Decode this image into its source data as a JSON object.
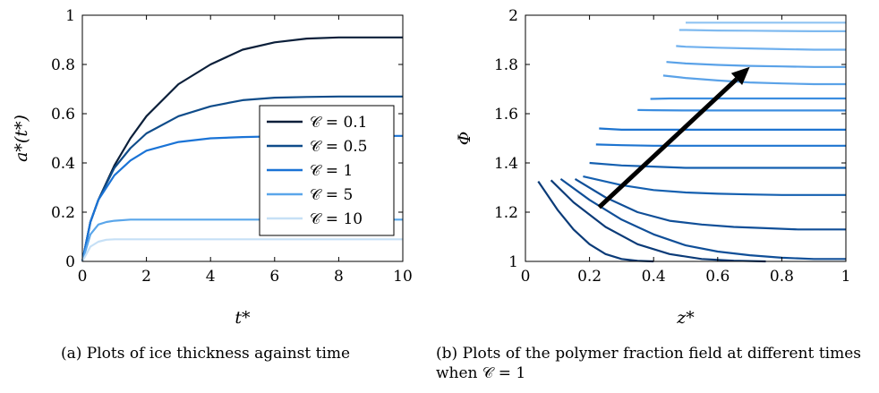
{
  "chart_data": [
    {
      "type": "line",
      "title": "",
      "xlabel": "t*",
      "ylabel": "a*(t*)",
      "xlim": [
        0,
        10
      ],
      "ylim": [
        0,
        1
      ],
      "xticks": [
        0,
        2,
        4,
        6,
        8,
        10
      ],
      "yticks": [
        0,
        0.2,
        0.4,
        0.6,
        0.8,
        1
      ],
      "legend_position": "center-right",
      "grid": false,
      "series": [
        {
          "name": "𝒞 = 0.1",
          "color": "#0b1f3a",
          "x": [
            0,
            0.25,
            0.5,
            1,
            1.5,
            2,
            3,
            4,
            5,
            6,
            7,
            8,
            9,
            10
          ],
          "y": [
            0,
            0.16,
            0.25,
            0.39,
            0.5,
            0.59,
            0.72,
            0.8,
            0.86,
            0.89,
            0.905,
            0.91,
            0.91,
            0.91
          ]
        },
        {
          "name": "𝒞 = 0.5",
          "color": "#0f4c8a",
          "x": [
            0,
            0.25,
            0.5,
            1,
            1.5,
            2,
            3,
            4,
            5,
            6,
            7,
            8,
            9,
            10
          ],
          "y": [
            0,
            0.16,
            0.25,
            0.38,
            0.46,
            0.52,
            0.59,
            0.63,
            0.655,
            0.665,
            0.668,
            0.67,
            0.67,
            0.67
          ]
        },
        {
          "name": "𝒞 = 1",
          "color": "#1a73d6",
          "x": [
            0,
            0.25,
            0.5,
            1,
            1.5,
            2,
            3,
            4,
            5,
            6,
            7,
            8,
            9,
            10
          ],
          "y": [
            0,
            0.16,
            0.25,
            0.35,
            0.41,
            0.45,
            0.485,
            0.5,
            0.505,
            0.508,
            0.51,
            0.51,
            0.51,
            0.51
          ]
        },
        {
          "name": "𝒞 = 5",
          "color": "#5aa6ea",
          "x": [
            0,
            0.25,
            0.5,
            0.75,
            1,
            1.5,
            2,
            3,
            4,
            6,
            8,
            10
          ],
          "y": [
            0,
            0.11,
            0.15,
            0.16,
            0.165,
            0.17,
            0.17,
            0.17,
            0.17,
            0.17,
            0.17,
            0.17
          ]
        },
        {
          "name": "𝒞 = 10",
          "color": "#c6e0f6",
          "x": [
            0,
            0.25,
            0.5,
            0.75,
            1,
            1.5,
            2,
            4,
            6,
            8,
            10
          ],
          "y": [
            0,
            0.06,
            0.08,
            0.088,
            0.09,
            0.09,
            0.09,
            0.09,
            0.09,
            0.09,
            0.09
          ]
        }
      ]
    },
    {
      "type": "line",
      "title": "",
      "xlabel": "z*",
      "ylabel": "Φ",
      "xlim": [
        0,
        1
      ],
      "ylim": [
        1,
        2
      ],
      "xticks": [
        0,
        0.2,
        0.4,
        0.6,
        0.8,
        1
      ],
      "yticks": [
        1,
        1.2,
        1.4,
        1.6,
        1.8,
        2
      ],
      "grid": false,
      "annotation": "arrow indicating increasing time",
      "arrow": {
        "from": [
          0.23,
          1.22
        ],
        "to": [
          0.7,
          1.79
        ]
      },
      "series": [
        {
          "color": "#0b3b78",
          "x": [
            0.04,
            0.1,
            0.15,
            0.2,
            0.25,
            0.3,
            0.35,
            0.4
          ],
          "y": [
            1.325,
            1.21,
            1.13,
            1.07,
            1.03,
            1.01,
            1.002,
            1.0
          ]
        },
        {
          "color": "#0b3b78",
          "x": [
            0.08,
            0.15,
            0.25,
            0.35,
            0.45,
            0.55,
            0.65,
            0.75
          ],
          "y": [
            1.33,
            1.24,
            1.14,
            1.07,
            1.03,
            1.01,
            1.003,
            1.0
          ]
        },
        {
          "color": "#104f98",
          "x": [
            0.11,
            0.2,
            0.3,
            0.4,
            0.5,
            0.6,
            0.7,
            0.8,
            0.9,
            1.0
          ],
          "y": [
            1.335,
            1.25,
            1.17,
            1.11,
            1.065,
            1.04,
            1.025,
            1.015,
            1.01,
            1.01
          ]
        },
        {
          "color": "#104f98",
          "x": [
            0.155,
            0.25,
            0.35,
            0.45,
            0.55,
            0.65,
            0.75,
            0.85,
            1.0
          ],
          "y": [
            1.335,
            1.26,
            1.2,
            1.165,
            1.15,
            1.14,
            1.135,
            1.13,
            1.13
          ]
        },
        {
          "color": "#1560b0",
          "x": [
            0.18,
            0.3,
            0.4,
            0.5,
            0.6,
            0.7,
            0.8,
            0.9,
            1.0
          ],
          "y": [
            1.345,
            1.31,
            1.29,
            1.28,
            1.275,
            1.272,
            1.27,
            1.27,
            1.27
          ]
        },
        {
          "color": "#1560b0",
          "x": [
            0.2,
            0.3,
            0.4,
            0.5,
            0.6,
            0.7,
            0.8,
            0.9,
            1.0
          ],
          "y": [
            1.4,
            1.39,
            1.385,
            1.38,
            1.38,
            1.38,
            1.38,
            1.38,
            1.38
          ]
        },
        {
          "color": "#1d74d0",
          "x": [
            0.22,
            0.3,
            0.4,
            0.5,
            0.6,
            0.7,
            0.8,
            0.9,
            1.0
          ],
          "y": [
            1.475,
            1.472,
            1.47,
            1.47,
            1.47,
            1.47,
            1.47,
            1.47,
            1.47
          ]
        },
        {
          "color": "#1d74d0",
          "x": [
            0.23,
            0.3,
            0.4,
            0.5,
            0.6,
            0.7,
            0.8,
            0.9,
            1.0
          ],
          "y": [
            1.54,
            1.535,
            1.535,
            1.535,
            1.535,
            1.535,
            1.535,
            1.535,
            1.535
          ]
        },
        {
          "color": "#3b8de0",
          "x": [
            0.35,
            0.4,
            0.5,
            0.6,
            0.7,
            0.8,
            0.9,
            1.0
          ],
          "y": [
            1.615,
            1.614,
            1.613,
            1.613,
            1.613,
            1.613,
            1.613,
            1.613
          ]
        },
        {
          "color": "#3b8de0",
          "x": [
            0.39,
            0.45,
            0.5,
            0.6,
            0.7,
            0.8,
            0.9,
            1.0
          ],
          "y": [
            1.66,
            1.662,
            1.662,
            1.662,
            1.662,
            1.662,
            1.662,
            1.662
          ]
        },
        {
          "color": "#5aa2e8",
          "x": [
            0.43,
            0.5,
            0.6,
            0.7,
            0.8,
            0.9,
            1.0
          ],
          "y": [
            1.755,
            1.745,
            1.735,
            1.727,
            1.723,
            1.72,
            1.72
          ]
        },
        {
          "color": "#5aa2e8",
          "x": [
            0.44,
            0.5,
            0.6,
            0.7,
            0.8,
            0.9,
            1.0
          ],
          "y": [
            1.81,
            1.804,
            1.798,
            1.794,
            1.792,
            1.79,
            1.79
          ]
        },
        {
          "color": "#6fb0ee",
          "x": [
            0.47,
            0.5,
            0.6,
            0.7,
            0.8,
            0.9,
            1.0
          ],
          "y": [
            1.875,
            1.872,
            1.868,
            1.865,
            1.862,
            1.86,
            1.86
          ]
        },
        {
          "color": "#7fbaf0",
          "x": [
            0.48,
            0.5,
            0.6,
            0.7,
            0.8,
            0.9,
            1.0
          ],
          "y": [
            1.94,
            1.94,
            1.938,
            1.937,
            1.936,
            1.935,
            1.935
          ]
        },
        {
          "color": "#8fc4f2",
          "x": [
            0.5,
            0.6,
            0.7,
            0.8,
            0.9,
            1.0
          ],
          "y": [
            1.97,
            1.97,
            1.97,
            1.97,
            1.97,
            1.97
          ]
        }
      ]
    }
  ],
  "captions": {
    "a": "(a) Plots of ice thickness against time",
    "b": "(b) Plots of the polymer fraction field at different times when 𝒞 = 1"
  }
}
